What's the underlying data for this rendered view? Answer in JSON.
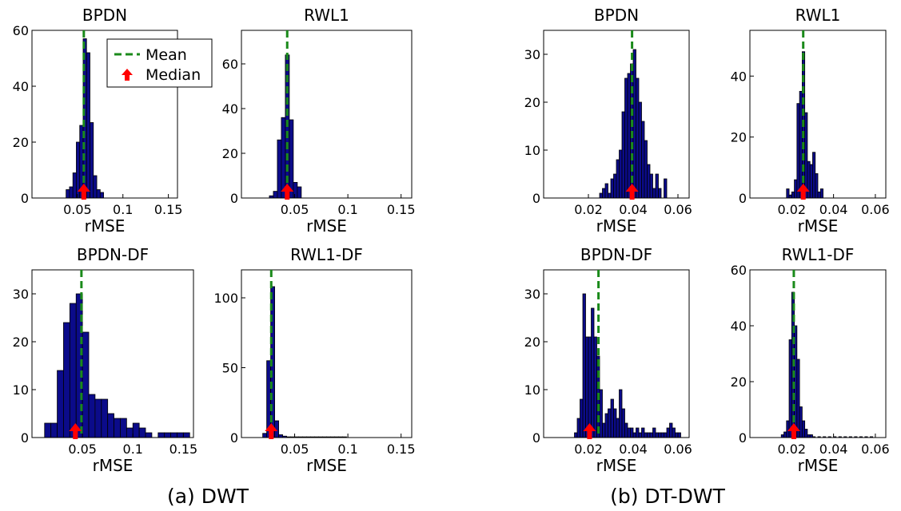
{
  "captions": {
    "a": "(a) DWT",
    "b": "(b) DT-DWT"
  },
  "legend": {
    "mean_label": "Mean",
    "median_label": "Median"
  },
  "colors": {
    "bar": "#0b0b8a",
    "mean": "#1a8a1a",
    "median": "#ff0000"
  },
  "chart_data": [
    {
      "type": "bar",
      "title": "BPDN",
      "xlabel": "rMSE",
      "xlim": [
        0,
        0.16
      ],
      "ylim": [
        0,
        60
      ],
      "xticks": [
        0.05,
        0.1,
        0.15
      ],
      "xtick_labels": [
        "0.05",
        "0.1",
        "0.15"
      ],
      "yticks": [
        0,
        20,
        40,
        60
      ],
      "ytick_labels": [
        "0",
        "20",
        "40",
        "60"
      ],
      "bin_width": 0.00375,
      "bins": [
        [
          0.0375,
          3
        ],
        [
          0.04125,
          4
        ],
        [
          0.045,
          9
        ],
        [
          0.04875,
          20
        ],
        [
          0.0525,
          26
        ],
        [
          0.05625,
          57
        ],
        [
          0.06,
          52
        ],
        [
          0.06375,
          27
        ],
        [
          0.0675,
          8
        ],
        [
          0.07125,
          3
        ],
        [
          0.075,
          2
        ]
      ],
      "mean": 0.057,
      "median": 0.057
    },
    {
      "type": "bar",
      "title": "RWL1",
      "xlabel": "rMSE",
      "xlim": [
        0,
        0.16
      ],
      "ylim": [
        0,
        75
      ],
      "xticks": [
        0.05,
        0.1,
        0.15
      ],
      "xtick_labels": [
        "0.05",
        "0.1",
        "0.15"
      ],
      "yticks": [
        0,
        20,
        40,
        60
      ],
      "ytick_labels": [
        "0",
        "20",
        "40",
        "60"
      ],
      "bin_width": 0.00375,
      "bins": [
        [
          0.02625,
          1
        ],
        [
          0.03,
          3
        ],
        [
          0.03375,
          26
        ],
        [
          0.0375,
          36
        ],
        [
          0.04125,
          64
        ],
        [
          0.045,
          35
        ],
        [
          0.04875,
          7
        ],
        [
          0.0525,
          5
        ]
      ],
      "mean": 0.043,
      "median": 0.043
    },
    {
      "type": "bar",
      "title": "BPDN-DF",
      "xlabel": "rMSE",
      "xlim": [
        0,
        0.16
      ],
      "ylim": [
        0,
        35
      ],
      "xticks": [
        0.05,
        0.1,
        0.15
      ],
      "xtick_labels": [
        "0.05",
        "0.1",
        "0.15"
      ],
      "yticks": [
        0,
        10,
        20,
        30
      ],
      "ytick_labels": [
        "0",
        "10",
        "20",
        "30"
      ],
      "bin_width": 0.00625,
      "bins": [
        [
          0.0125,
          3
        ],
        [
          0.01875,
          3
        ],
        [
          0.025,
          14
        ],
        [
          0.03125,
          24
        ],
        [
          0.0375,
          28
        ],
        [
          0.04375,
          30
        ],
        [
          0.05,
          22
        ],
        [
          0.05625,
          9
        ],
        [
          0.0625,
          8
        ],
        [
          0.06875,
          8
        ],
        [
          0.075,
          5
        ],
        [
          0.08125,
          4
        ],
        [
          0.0875,
          4
        ],
        [
          0.09375,
          2
        ],
        [
          0.1,
          3
        ],
        [
          0.10625,
          2
        ],
        [
          0.1125,
          1
        ],
        [
          0.11875,
          0
        ],
        [
          0.125,
          1
        ],
        [
          0.13125,
          1
        ],
        [
          0.1375,
          1
        ],
        [
          0.14375,
          1
        ],
        [
          0.15,
          1
        ]
      ],
      "mean": 0.049,
      "median": 0.043
    },
    {
      "type": "bar",
      "title": "RWL1-DF",
      "xlabel": "rMSE",
      "xlim": [
        0,
        0.16
      ],
      "ylim": [
        0,
        120
      ],
      "xticks": [
        0.05,
        0.1,
        0.15
      ],
      "xtick_labels": [
        "0.05",
        "0.1",
        "0.15"
      ],
      "yticks": [
        0,
        50,
        100
      ],
      "ytick_labels": [
        "0",
        "50",
        "100"
      ],
      "bin_width": 0.00375,
      "bins": [
        [
          0.02,
          3
        ],
        [
          0.02375,
          55
        ],
        [
          0.0275,
          108
        ],
        [
          0.03125,
          12
        ],
        [
          0.035,
          2
        ],
        [
          0.03875,
          1
        ],
        [
          0.0425,
          0.5
        ],
        [
          0.04625,
          0.5
        ],
        [
          0.05,
          0.5
        ],
        [
          0.05375,
          0.5
        ],
        [
          0.0575,
          0.5
        ],
        [
          0.06125,
          0.5
        ],
        [
          0.065,
          0.5
        ],
        [
          0.06875,
          0.5
        ],
        [
          0.0725,
          0.5
        ],
        [
          0.07625,
          0.5
        ],
        [
          0.08,
          0.5
        ],
        [
          0.08375,
          0.5
        ],
        [
          0.0875,
          0.5
        ],
        [
          0.09125,
          0.5
        ],
        [
          0.095,
          0.5
        ]
      ],
      "mean": 0.028,
      "median": 0.028
    },
    {
      "type": "bar",
      "title": "BPDN",
      "xlabel": "rMSE",
      "xlim": [
        0,
        0.065
      ],
      "ylim": [
        0,
        35
      ],
      "xticks": [
        0.02,
        0.04,
        0.06
      ],
      "xtick_labels": [
        "0.02",
        "0.04",
        "0.06"
      ],
      "yticks": [
        0,
        10,
        20,
        30
      ],
      "ytick_labels": [
        "0",
        "10",
        "20",
        "30"
      ],
      "bin_width": 0.00125,
      "bins": [
        [
          0.025,
          1
        ],
        [
          0.02625,
          2
        ],
        [
          0.0275,
          3
        ],
        [
          0.02875,
          1
        ],
        [
          0.03,
          4
        ],
        [
          0.03125,
          5
        ],
        [
          0.0325,
          8
        ],
        [
          0.03375,
          10
        ],
        [
          0.035,
          18
        ],
        [
          0.03625,
          25
        ],
        [
          0.0375,
          26
        ],
        [
          0.03875,
          28
        ],
        [
          0.04,
          31
        ],
        [
          0.04125,
          25
        ],
        [
          0.0425,
          20
        ],
        [
          0.04375,
          16
        ],
        [
          0.045,
          12
        ],
        [
          0.04625,
          7
        ],
        [
          0.0475,
          5
        ],
        [
          0.04875,
          2
        ],
        [
          0.05,
          5
        ],
        [
          0.05125,
          2
        ],
        [
          0.0525,
          0
        ],
        [
          0.05375,
          4
        ]
      ],
      "mean": 0.0395,
      "median": 0.0395
    },
    {
      "type": "bar",
      "title": "RWL1",
      "xlabel": "rMSE",
      "xlim": [
        0,
        0.065
      ],
      "ylim": [
        0,
        55
      ],
      "xticks": [
        0.02,
        0.04,
        0.06
      ],
      "xtick_labels": [
        "0.02",
        "0.04",
        "0.06"
      ],
      "yticks": [
        0,
        20,
        40
      ],
      "ytick_labels": [
        "0",
        "20",
        "40"
      ],
      "bin_width": 0.00125,
      "bins": [
        [
          0.0175,
          3
        ],
        [
          0.01875,
          1
        ],
        [
          0.02,
          2
        ],
        [
          0.02125,
          6
        ],
        [
          0.0225,
          31
        ],
        [
          0.02375,
          35
        ],
        [
          0.025,
          48
        ],
        [
          0.02625,
          28
        ],
        [
          0.0275,
          12
        ],
        [
          0.02875,
          11
        ],
        [
          0.03,
          15
        ],
        [
          0.03125,
          8
        ],
        [
          0.0325,
          2
        ],
        [
          0.03375,
          3
        ]
      ],
      "mean": 0.0255,
      "median": 0.0255
    },
    {
      "type": "bar",
      "title": "BPDN-DF",
      "xlabel": "rMSE",
      "xlim": [
        0,
        0.065
      ],
      "ylim": [
        0,
        35
      ],
      "xticks": [
        0.02,
        0.04,
        0.06
      ],
      "xtick_labels": [
        "0.02",
        "0.04",
        "0.06"
      ],
      "yticks": [
        0,
        10,
        20,
        30
      ],
      "ytick_labels": [
        "0",
        "10",
        "20",
        "30"
      ],
      "bin_width": 0.00125,
      "bins": [
        [
          0.01375,
          1
        ],
        [
          0.015,
          4
        ],
        [
          0.01625,
          8
        ],
        [
          0.0175,
          30
        ],
        [
          0.01875,
          21
        ],
        [
          0.02,
          21
        ],
        [
          0.02125,
          27
        ],
        [
          0.0225,
          21
        ],
        [
          0.02375,
          17
        ],
        [
          0.025,
          10
        ],
        [
          0.02625,
          3
        ],
        [
          0.0275,
          5
        ],
        [
          0.02875,
          6
        ],
        [
          0.03,
          8
        ],
        [
          0.03125,
          6
        ],
        [
          0.0325,
          4
        ],
        [
          0.03375,
          10
        ],
        [
          0.035,
          6
        ],
        [
          0.03625,
          3
        ],
        [
          0.0375,
          2
        ],
        [
          0.03875,
          2
        ],
        [
          0.04,
          1
        ],
        [
          0.04125,
          2
        ],
        [
          0.0425,
          1
        ],
        [
          0.04375,
          2
        ],
        [
          0.045,
          1
        ],
        [
          0.04625,
          1
        ],
        [
          0.0475,
          1
        ],
        [
          0.04875,
          2
        ],
        [
          0.05,
          1
        ],
        [
          0.05125,
          1
        ],
        [
          0.0525,
          1
        ],
        [
          0.05375,
          1
        ],
        [
          0.055,
          2
        ],
        [
          0.05625,
          3
        ],
        [
          0.0575,
          2
        ],
        [
          0.05875,
          1
        ],
        [
          0.06,
          1
        ]
      ],
      "mean": 0.0245,
      "median": 0.0205
    },
    {
      "type": "bar",
      "title": "RWL1-DF",
      "xlabel": "rMSE",
      "xlim": [
        0,
        0.065
      ],
      "ylim": [
        0,
        60
      ],
      "xticks": [
        0.02,
        0.04,
        0.06
      ],
      "xtick_labels": [
        "0.02",
        "0.04",
        "0.06"
      ],
      "yticks": [
        0,
        20,
        40,
        60
      ],
      "ytick_labels": [
        "0",
        "20",
        "40",
        "60"
      ],
      "bin_width": 0.00125,
      "bins": [
        [
          0.015,
          1
        ],
        [
          0.01625,
          2
        ],
        [
          0.0175,
          6
        ],
        [
          0.01875,
          35
        ],
        [
          0.02,
          52
        ],
        [
          0.02125,
          40
        ],
        [
          0.0225,
          28
        ],
        [
          0.02375,
          11
        ],
        [
          0.025,
          6
        ],
        [
          0.02625,
          3
        ],
        [
          0.0275,
          1
        ],
        [
          0.02875,
          1
        ],
        [
          0.03,
          0.3
        ],
        [
          0.0325,
          0.3
        ],
        [
          0.035,
          0.3
        ],
        [
          0.0375,
          0.3
        ],
        [
          0.04,
          0.3
        ],
        [
          0.0425,
          0.3
        ],
        [
          0.045,
          0.3
        ],
        [
          0.0475,
          0.3
        ],
        [
          0.05,
          0.3
        ],
        [
          0.0525,
          0.3
        ],
        [
          0.055,
          0.3
        ],
        [
          0.0575,
          0.3
        ]
      ],
      "mean": 0.021,
      "median": 0.021
    }
  ]
}
